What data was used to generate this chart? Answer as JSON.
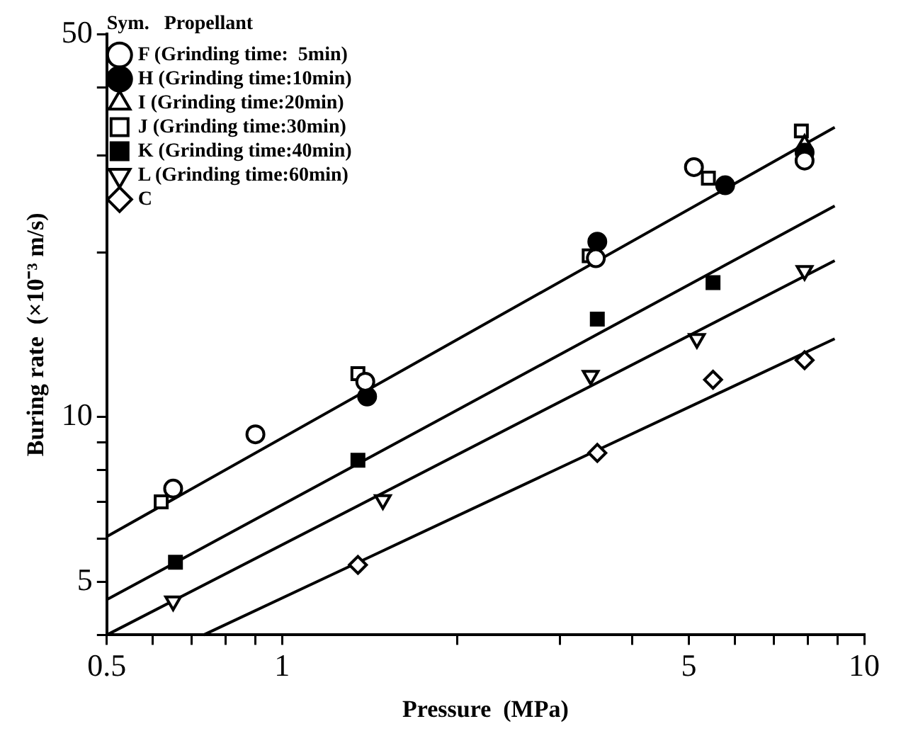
{
  "chart_data": {
    "type": "scatter",
    "xlabel": "Pressure  (MPa)",
    "ylabel": "Buring rate  (×10⁻³ m/s)",
    "legend_title": "Sym.   Propellant",
    "log": "xy",
    "legend": "top left",
    "xlim": [
      0.5,
      10
    ],
    "ylim": [
      4,
      50
    ],
    "xticks": [
      0.5,
      {
        "value": 0.6,
        "label": null
      },
      {
        "value": 0.7,
        "label": null
      },
      {
        "value": 0.8,
        "label": null
      },
      {
        "value": 0.9,
        "label": null
      },
      1,
      {
        "value": 2,
        "label": null
      },
      {
        "value": 3,
        "label": null
      },
      {
        "value": 4,
        "label": null
      },
      5,
      {
        "value": 6,
        "label": null
      },
      {
        "value": 7,
        "label": null
      },
      {
        "value": 8,
        "label": null
      },
      {
        "value": 9,
        "label": null
      },
      10
    ],
    "yticks": [
      {
        "value": 4,
        "label": null
      },
      5,
      {
        "value": 6,
        "label": null
      },
      {
        "value": 7,
        "label": null
      },
      {
        "value": 8,
        "label": null
      },
      {
        "value": 9,
        "label": null
      },
      10,
      {
        "value": 20,
        "label": null
      },
      {
        "value": 30,
        "label": null
      },
      {
        "value": 40,
        "label": null
      },
      50
    ],
    "series": [
      {
        "name": "F (Grinding time:  5min)",
        "color": "#000000",
        "marker": "circle-open",
        "x": [
          0.65,
          0.9,
          1.39,
          3.46,
          5.1,
          7.9
        ],
        "values": [
          7.4,
          9.3,
          11.6,
          19.5,
          28.6,
          29.4
        ]
      },
      {
        "name": "H (Grinding time:10min)",
        "color": "#000000",
        "marker": "circle",
        "x": [
          1.4,
          3.48,
          5.77,
          7.9
        ],
        "values": [
          10.9,
          20.9,
          26.5,
          30.4
        ]
      },
      {
        "name": "I (Grinding time:20min)",
        "color": "#000000",
        "marker": "triangle-open",
        "x": [
          7.9
        ],
        "values": [
          31.5
        ]
      },
      {
        "name": "J (Grinding time:30min)",
        "color": "#000000",
        "marker": "square-open",
        "x": [
          0.62,
          1.35,
          3.37,
          5.4,
          7.8
        ],
        "values": [
          7,
          12,
          19.7,
          27.3,
          33.3
        ]
      },
      {
        "name": "K (Grinding time:40min)",
        "color": "#000000",
        "marker": "square",
        "x": [
          0.656,
          1.35,
          3.48,
          5.5
        ],
        "values": [
          5.43,
          8.34,
          15.1,
          17.6
        ]
      },
      {
        "name": "L (Grinding time:60min)",
        "color": "#000000",
        "marker": "triangle-down-open",
        "x": [
          0.65,
          1.49,
          3.39,
          5.16,
          7.9
        ],
        "values": [
          4.61,
          7.06,
          11.9,
          13.9,
          18.5
        ]
      },
      {
        "name": "C",
        "color": "#000000",
        "marker": "diamond-open",
        "x": [
          1.35,
          3.48,
          5.5,
          7.9
        ],
        "values": [
          5.37,
          8.6,
          11.7,
          12.7
        ]
      },
      {
        "type": "line",
        "color": "#000000",
        "marker": "none",
        "line_style": "solid",
        "x": [
          0.5,
          8.9
        ],
        "values": [
          6.05,
          33.8
        ]
      },
      {
        "type": "line",
        "color": "#000000",
        "marker": "none",
        "line_style": "solid",
        "x": [
          0.5,
          8.9
        ],
        "values": [
          4.64,
          24.3
        ]
      },
      {
        "type": "line",
        "color": "#000000",
        "marker": "none",
        "line_style": "solid",
        "x": [
          0.5,
          8.9
        ],
        "values": [
          4,
          19.3
        ]
      },
      {
        "type": "line",
        "color": "#000000",
        "marker": "none",
        "line_style": "solid",
        "x": [
          0.733,
          8.9
        ],
        "values": [
          4,
          13.9
        ]
      }
    ]
  }
}
